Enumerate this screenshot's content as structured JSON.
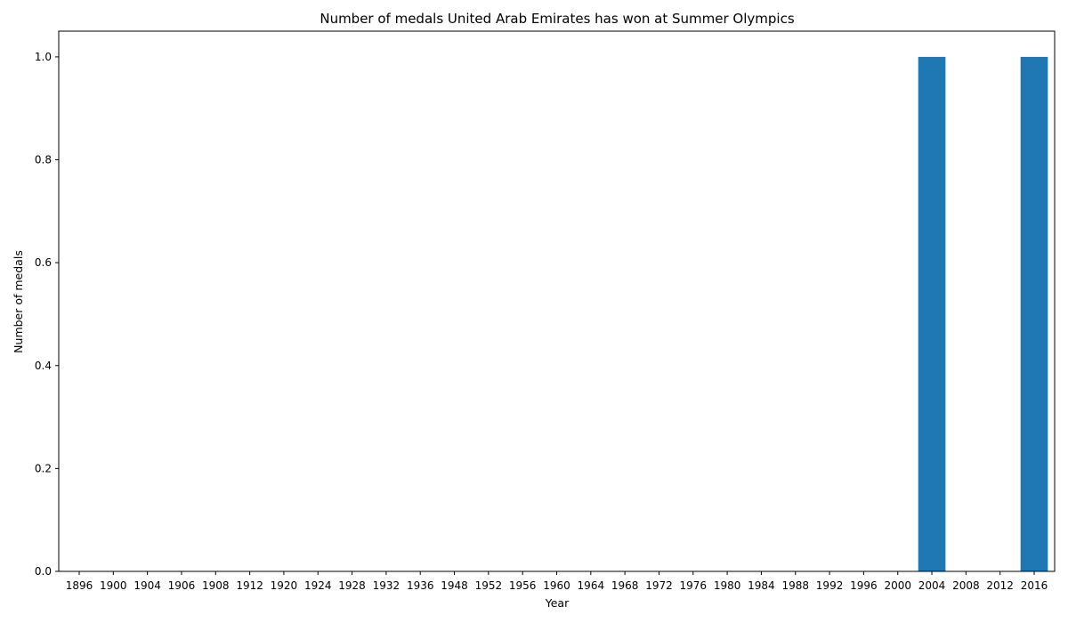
{
  "chart_data": {
    "type": "bar",
    "title": "Number of medals United Arab Emirates has won at Summer Olympics",
    "xlabel": "Year",
    "ylabel": "Number of medals",
    "categories": [
      "1896",
      "1900",
      "1904",
      "1906",
      "1908",
      "1912",
      "1920",
      "1924",
      "1928",
      "1932",
      "1936",
      "1948",
      "1952",
      "1956",
      "1960",
      "1964",
      "1968",
      "1972",
      "1976",
      "1980",
      "1984",
      "1988",
      "1992",
      "1996",
      "2000",
      "2004",
      "2008",
      "2012",
      "2016"
    ],
    "values": [
      0,
      0,
      0,
      0,
      0,
      0,
      0,
      0,
      0,
      0,
      0,
      0,
      0,
      0,
      0,
      0,
      0,
      0,
      0,
      0,
      0,
      0,
      0,
      0,
      0,
      1,
      0,
      0,
      1
    ],
    "ylim": [
      0,
      1.05
    ],
    "yticks": [
      "0.0",
      "0.2",
      "0.4",
      "0.6",
      "0.8",
      "1.0"
    ],
    "grid": false,
    "bar_color": "#1f77b4"
  }
}
